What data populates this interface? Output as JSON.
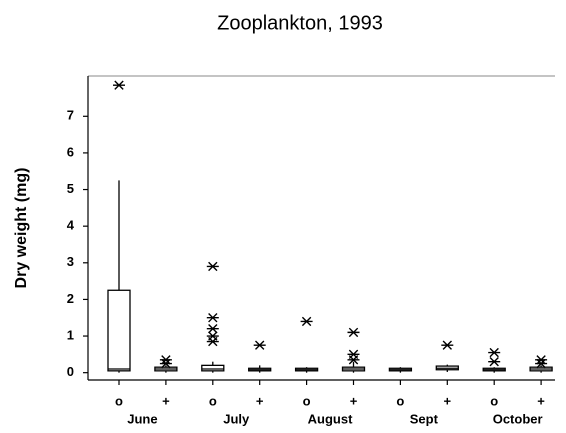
{
  "chart_data": {
    "type": "box",
    "title": "Zooplankton, 1993",
    "y_label": "Dry weight (mg)",
    "categories": [
      "o",
      "+",
      "o",
      "+",
      "o",
      "+",
      "o",
      "+",
      "o",
      "+"
    ],
    "groups": [
      "June",
      "July",
      "August",
      "Sept",
      "October"
    ],
    "color": "#000000",
    "boxes": [
      {
        "min": 0,
        "q1": 0.05,
        "median": 0.1,
        "q3": 2.25,
        "max": 5.25,
        "outliers": [
          7.85
        ]
      },
      {
        "min": 0,
        "q1": 0.05,
        "median": 0.1,
        "q3": 0.15,
        "max": 0.2,
        "outliers": [
          0.35,
          0.25
        ]
      },
      {
        "min": 0,
        "q1": 0.05,
        "median": 0.1,
        "q3": 0.2,
        "max": 0.3,
        "outliers": [
          2.9,
          1.5,
          1.2,
          1.0,
          0.85
        ]
      },
      {
        "min": 0,
        "q1": 0.05,
        "median": 0.08,
        "q3": 0.12,
        "max": 0.2,
        "outliers": [
          0.75
        ]
      },
      {
        "min": 0,
        "q1": 0.05,
        "median": 0.08,
        "q3": 0.12,
        "max": 0.15,
        "outliers": [
          1.4
        ]
      },
      {
        "min": 0,
        "q1": 0.05,
        "median": 0.1,
        "q3": 0.15,
        "max": 0.3,
        "outliers": [
          1.1,
          0.5,
          0.35
        ]
      },
      {
        "min": 0,
        "q1": 0.05,
        "median": 0.08,
        "q3": 0.12,
        "max": 0.15,
        "outliers": []
      },
      {
        "min": 0.02,
        "q1": 0.08,
        "median": 0.12,
        "q3": 0.18,
        "max": 0.22,
        "outliers": [
          0.75
        ]
      },
      {
        "min": 0,
        "q1": 0.05,
        "median": 0.08,
        "q3": 0.12,
        "max": 0.15,
        "outliers": [
          0.55,
          0.3
        ]
      },
      {
        "min": 0,
        "q1": 0.05,
        "median": 0.1,
        "q3": 0.15,
        "max": 0.2,
        "outliers": [
          0.35,
          0.25
        ]
      }
    ],
    "ylim": [
      -0.2,
      8.1
    ],
    "yticks": [
      0,
      1,
      2,
      3,
      4,
      5,
      6,
      7
    ]
  }
}
